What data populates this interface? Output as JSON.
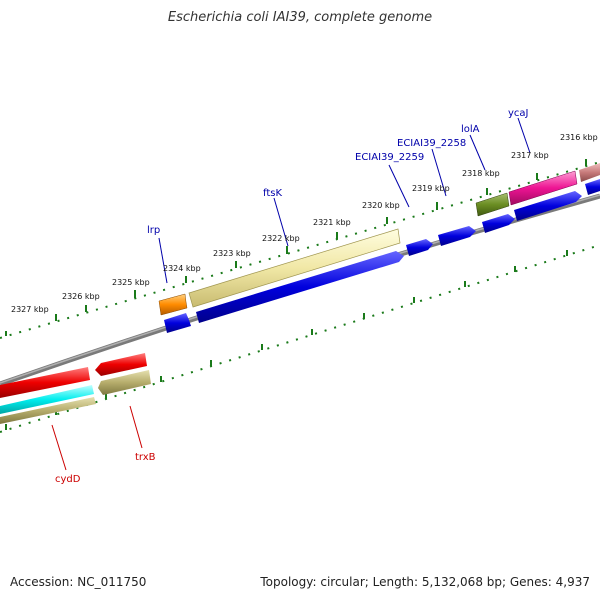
{
  "title": "Escherichia coli IAI39, complete genome",
  "footer": {
    "accession": "Accession: NC_011750",
    "summary": "Topology: circular; Length: 5,132,068 bp; Genes: 4,937"
  },
  "ruler_labels": [
    "2316 kbp",
    "2317 kbp",
    "2318 kbp",
    "2319 kbp",
    "2320 kbp",
    "2321 kbp",
    "2322 kbp",
    "2323 kbp",
    "2324 kbp",
    "2325 kbp",
    "2326 kbp",
    "2327 kbp"
  ],
  "gene_labels": {
    "ycaJ": "ycaJ",
    "lolA": "lolA",
    "ECIAI39_2258": "ECIAI39_2258",
    "ECIAI39_2259": "ECIAI39_2259",
    "ftsK": "ftsK",
    "lrp": "lrp",
    "cydD": "cydD",
    "trxB": "trxB"
  },
  "colors": {
    "cds_blue": "#0000dd",
    "label_blue": "#0000aa",
    "label_red": "#cc0000",
    "tick_green": "#1a7a1a",
    "backbone_gray": "#808080"
  }
}
